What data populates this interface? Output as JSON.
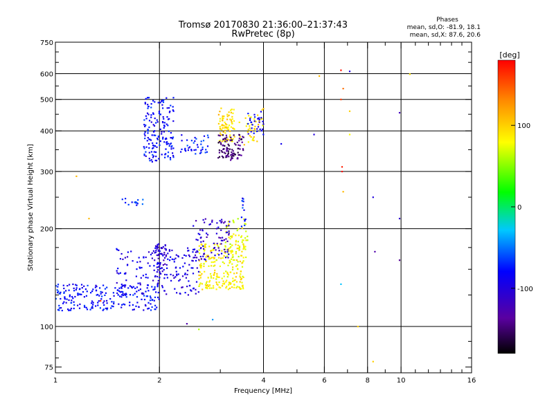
{
  "chart_data": {
    "type": "scatter",
    "title": "Tromsø 20170830 21:36:00–21:37:43",
    "subtitle": "RwPretec (8p)",
    "info_heading": "Phases",
    "info_lines": [
      "mean, sd,O: -81.9, 18.1",
      "mean, sd,X:  87.6, 20.6"
    ],
    "xlabel": "Frequency [MHz]",
    "ylabel": "Stationary phase Virtual Height [km]",
    "xscale": "log",
    "yscale": "log",
    "xlim": [
      1,
      16
    ],
    "ylim": [
      72,
      750
    ],
    "xticks": [
      1,
      2,
      4,
      6,
      8,
      10,
      16
    ],
    "xtick_labels": [
      "1",
      "2",
      "4",
      "6",
      "8",
      "10",
      "16"
    ],
    "xgrid": [
      2,
      4,
      6,
      8,
      10
    ],
    "yticks": [
      75,
      100,
      200,
      300,
      400,
      500,
      600,
      750
    ],
    "ytick_labels": [
      "75",
      "100",
      "200",
      "300",
      "400",
      "500",
      "600",
      "750"
    ],
    "ygrid": [
      100,
      200,
      300,
      400,
      500,
      600
    ],
    "grid": true,
    "colorbar": {
      "label": "[deg]",
      "min": -180,
      "max": 180,
      "ticks": [
        100,
        0,
        -100
      ],
      "tick_labels": [
        "100",
        "0",
        "-100"
      ],
      "colormap": "rainbow: black-purple-blue-cyan-green-yellow-red"
    },
    "clusters": [
      {
        "name": "o-low-branch",
        "fmin": 1.0,
        "fmax": 2.0,
        "hmin": 112,
        "hmax": 135,
        "phase": -80,
        "count": 220
      },
      {
        "name": "o-rising",
        "fmin": 1.5,
        "fmax": 2.6,
        "hmin": 125,
        "hmax": 175,
        "phase": -95,
        "count": 180
      },
      {
        "name": "x-low-cluster",
        "fmin": 2.6,
        "fmax": 3.5,
        "hmin": 130,
        "hmax": 180,
        "phase": 85,
        "count": 230
      },
      {
        "name": "x-low-mid",
        "fmin": 3.1,
        "fmax": 3.6,
        "hmin": 160,
        "hmax": 215,
        "phase": 75,
        "count": 60
      },
      {
        "name": "o-low-upper",
        "fmin": 2.5,
        "fmax": 3.2,
        "hmin": 160,
        "hmax": 215,
        "phase": -110,
        "count": 90
      },
      {
        "name": "o-column-2",
        "fmin": 1.95,
        "fmax": 2.1,
        "hmin": 140,
        "hmax": 180,
        "phase": -105,
        "count": 50
      },
      {
        "name": "o-high-column",
        "fmin": 1.8,
        "fmax": 2.2,
        "hmin": 320,
        "hmax": 510,
        "phase": -80,
        "count": 170
      },
      {
        "name": "o-high-hook",
        "fmin": 2.3,
        "fmax": 2.8,
        "hmin": 340,
        "hmax": 390,
        "phase": -75,
        "count": 40
      },
      {
        "name": "x-high-cluster",
        "fmin": 2.95,
        "fmax": 3.3,
        "hmin": 370,
        "hmax": 470,
        "phase": 95,
        "count": 80
      },
      {
        "name": "o-high-violet",
        "fmin": 2.95,
        "fmax": 3.5,
        "hmin": 325,
        "hmax": 390,
        "phase": -150,
        "count": 100
      },
      {
        "name": "x-high-right",
        "fmin": 3.4,
        "fmax": 4.0,
        "hmin": 360,
        "hmax": 470,
        "phase": 90,
        "count": 40
      },
      {
        "name": "o-high-right",
        "fmin": 3.6,
        "fmax": 4.0,
        "hmin": 390,
        "hmax": 460,
        "phase": -90,
        "count": 30
      },
      {
        "name": "o-mid-isolated",
        "fmin": 1.5,
        "fmax": 1.8,
        "hmin": 235,
        "hmax": 248,
        "phase": -70,
        "count": 15
      },
      {
        "name": "o-column-3.5",
        "fmin": 3.45,
        "fmax": 3.55,
        "hmin": 200,
        "hmax": 250,
        "phase": -75,
        "count": 15
      }
    ],
    "scattered_points": [
      {
        "f": 6.7,
        "h": 615,
        "phase": 175
      },
      {
        "f": 6.7,
        "h": 500,
        "phase": 160
      },
      {
        "f": 6.75,
        "h": 310,
        "phase": 170
      },
      {
        "f": 6.75,
        "h": 300,
        "phase": 175
      },
      {
        "f": 6.8,
        "h": 540,
        "phase": 140
      },
      {
        "f": 6.8,
        "h": 260,
        "phase": 110
      },
      {
        "f": 7.1,
        "h": 610,
        "phase": -100
      },
      {
        "f": 7.1,
        "h": 460,
        "phase": 100
      },
      {
        "f": 7.1,
        "h": 390,
        "phase": 80
      },
      {
        "f": 6.7,
        "h": 135,
        "phase": -30
      },
      {
        "f": 8.3,
        "h": 250,
        "phase": -100
      },
      {
        "f": 8.4,
        "h": 170,
        "phase": -130
      },
      {
        "f": 8.3,
        "h": 78,
        "phase": 100
      },
      {
        "f": 9.9,
        "h": 455,
        "phase": -120
      },
      {
        "f": 9.9,
        "h": 215,
        "phase": -110
      },
      {
        "f": 9.9,
        "h": 160,
        "phase": -140
      },
      {
        "f": 10.6,
        "h": 598,
        "phase": 90
      },
      {
        "f": 5.8,
        "h": 590,
        "phase": 110
      },
      {
        "f": 5.6,
        "h": 390,
        "phase": -100
      },
      {
        "f": 4.5,
        "h": 365,
        "phase": -90
      },
      {
        "f": 1.35,
        "h": 120,
        "phase": 170
      },
      {
        "f": 1.25,
        "h": 215,
        "phase": 110
      },
      {
        "f": 1.15,
        "h": 290,
        "phase": 110
      },
      {
        "f": 2.4,
        "h": 102,
        "phase": -130
      },
      {
        "f": 2.6,
        "h": 98,
        "phase": 60
      },
      {
        "f": 2.85,
        "h": 105,
        "phase": -40
      },
      {
        "f": 7.5,
        "h": 100,
        "phase": 100
      }
    ]
  }
}
